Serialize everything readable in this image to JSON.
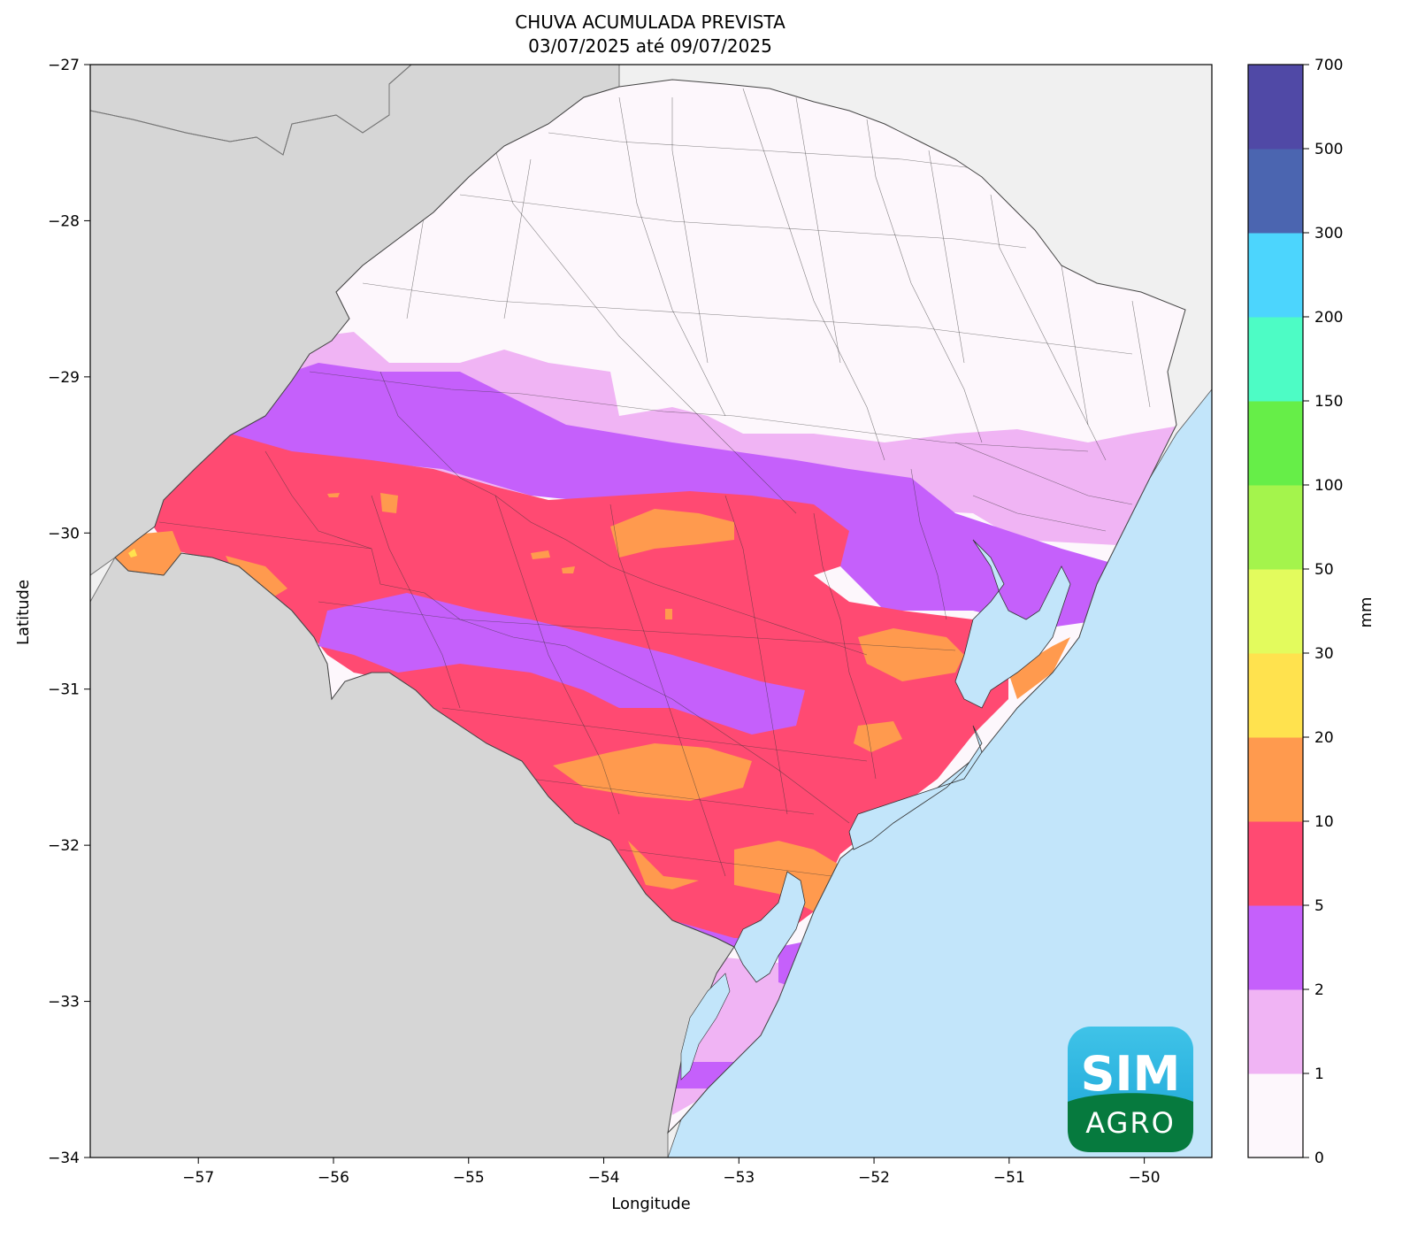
{
  "title": {
    "line1": "CHUVA ACUMULADA PREVISTA",
    "line2": "03/07/2025 até 09/07/2025"
  },
  "axes": {
    "xlabel": "Longitude",
    "ylabel": "Latitude",
    "x_ticks": [
      "−57",
      "−56",
      "−55",
      "−54",
      "−53",
      "−52",
      "−51",
      "−50"
    ],
    "y_ticks": [
      "−27",
      "−28",
      "−29",
      "−30",
      "−31",
      "−32",
      "−33",
      "−34"
    ],
    "x_range": [
      -57.8,
      -49.5
    ],
    "y_range": [
      -34,
      -27
    ]
  },
  "colorbar": {
    "unit_label": "mm",
    "bins": [
      {
        "from": "0",
        "to": "1",
        "color": "#fdf7fc"
      },
      {
        "from": "1",
        "to": "2",
        "color": "#f0b4f4"
      },
      {
        "from": "2",
        "to": "5",
        "color": "#c560fb"
      },
      {
        "from": "5",
        "to": "10",
        "color": "#ff4a72"
      },
      {
        "from": "10",
        "to": "20",
        "color": "#ff9a4e"
      },
      {
        "from": "20",
        "to": "30",
        "color": "#ffe24e"
      },
      {
        "from": "30",
        "to": "50",
        "color": "#e3fb5d"
      },
      {
        "from": "50",
        "to": "100",
        "color": "#a4f44c"
      },
      {
        "from": "100",
        "to": "150",
        "color": "#66ee48"
      },
      {
        "from": "150",
        "to": "200",
        "color": "#4dfcc5"
      },
      {
        "from": "200",
        "to": "300",
        "color": "#4cd5fd"
      },
      {
        "from": "300",
        "to": "500",
        "color": "#4b65b0"
      },
      {
        "from": "500",
        "to": "700",
        "color": "#5049a6"
      }
    ],
    "tick_labels": [
      "0",
      "1",
      "2",
      "5",
      "10",
      "20",
      "30",
      "50",
      "100",
      "150",
      "200",
      "300",
      "500",
      "700"
    ]
  },
  "map_colors": {
    "land_outside": "#d6d6d6",
    "ocean": "#c2e5fa",
    "north_background": "#f0f0f0"
  },
  "logo": {
    "top_text": "SIM",
    "bottom_text": "AGRO"
  }
}
